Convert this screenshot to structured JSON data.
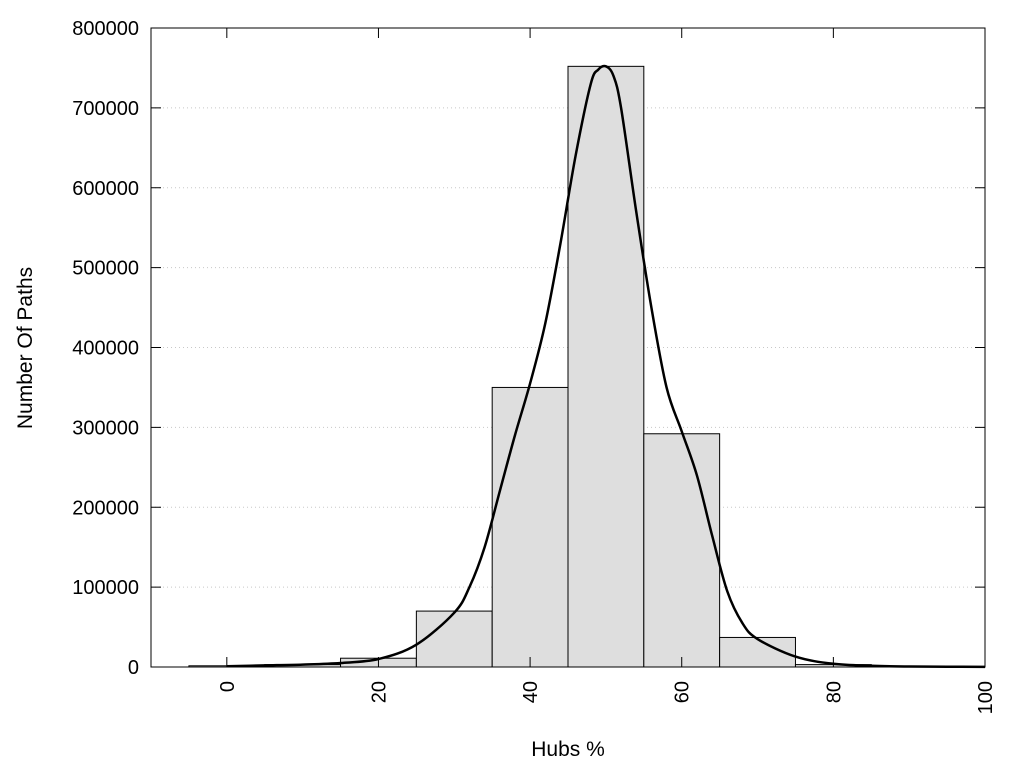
{
  "chart_data": {
    "type": "bar",
    "title": "",
    "xlabel": "Hubs %",
    "ylabel": "Number Of Paths",
    "xlim": [
      -10,
      100
    ],
    "ylim": [
      0,
      800000
    ],
    "grid": "horizontal-dotted",
    "legend": "none",
    "x_ticks": [
      "0",
      "20",
      "40",
      "60",
      "80",
      "100"
    ],
    "y_ticks": [
      "0",
      "100000",
      "200000",
      "300000",
      "400000",
      "500000",
      "600000",
      "700000",
      "800000"
    ],
    "bar_width": 10,
    "bars": [
      {
        "x": 0,
        "value": 1500
      },
      {
        "x": 10,
        "value": 3000
      },
      {
        "x": 20,
        "value": 11000
      },
      {
        "x": 30,
        "value": 70000
      },
      {
        "x": 40,
        "value": 350000
      },
      {
        "x": 50,
        "value": 752000
      },
      {
        "x": 60,
        "value": 292000
      },
      {
        "x": 70,
        "value": 37000
      },
      {
        "x": 80,
        "value": 3000
      },
      {
        "x": 90,
        "value": 800
      }
    ],
    "curve": [
      {
        "x": 0,
        "y": 1000
      },
      {
        "x": 5,
        "y": 2000
      },
      {
        "x": 10,
        "y": 3000
      },
      {
        "x": 15,
        "y": 5000
      },
      {
        "x": 20,
        "y": 10000
      },
      {
        "x": 25,
        "y": 28000
      },
      {
        "x": 30,
        "y": 68000
      },
      {
        "x": 32,
        "y": 100000
      },
      {
        "x": 34,
        "y": 150000
      },
      {
        "x": 36,
        "y": 220000
      },
      {
        "x": 38,
        "y": 290000
      },
      {
        "x": 40,
        "y": 355000
      },
      {
        "x": 42,
        "y": 430000
      },
      {
        "x": 44,
        "y": 530000
      },
      {
        "x": 46,
        "y": 640000
      },
      {
        "x": 48,
        "y": 730000
      },
      {
        "x": 49,
        "y": 748000
      },
      {
        "x": 50,
        "y": 752000
      },
      {
        "x": 51,
        "y": 740000
      },
      {
        "x": 52,
        "y": 700000
      },
      {
        "x": 54,
        "y": 570000
      },
      {
        "x": 56,
        "y": 450000
      },
      {
        "x": 58,
        "y": 350000
      },
      {
        "x": 60,
        "y": 295000
      },
      {
        "x": 62,
        "y": 240000
      },
      {
        "x": 64,
        "y": 165000
      },
      {
        "x": 66,
        "y": 95000
      },
      {
        "x": 68,
        "y": 55000
      },
      {
        "x": 70,
        "y": 35000
      },
      {
        "x": 75,
        "y": 13000
      },
      {
        "x": 80,
        "y": 4000
      },
      {
        "x": 85,
        "y": 1500
      },
      {
        "x": 90,
        "y": 600
      },
      {
        "x": 95,
        "y": 300
      },
      {
        "x": 100,
        "y": 200
      }
    ],
    "colors": {
      "bar_fill": "#dedede",
      "bar_stroke": "#000000",
      "curve": "#000000",
      "grid": "#c8c8c8",
      "axis": "#000000"
    }
  }
}
